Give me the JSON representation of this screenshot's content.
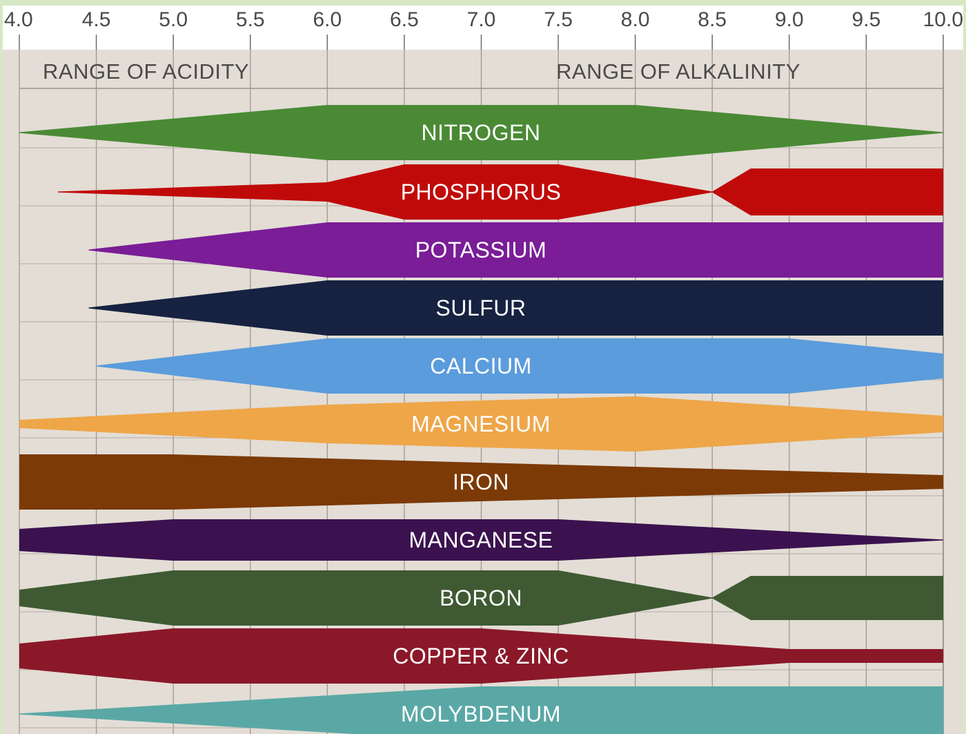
{
  "chart_data": {
    "type": "area",
    "x_ticks": [
      "4.0",
      "4.5",
      "5.0",
      "5.5",
      "6.0",
      "6.5",
      "7.0",
      "7.5",
      "8.0",
      "8.5",
      "9.0",
      "9.5",
      "10.0"
    ],
    "xlim": [
      4.0,
      10.0
    ],
    "grid": true,
    "range_labels": {
      "acidity": "RANGE OF ACIDITY",
      "alkalinity": "RANGE OF ALKALINITY"
    },
    "series": [
      {
        "name": "NITROGEN",
        "color": "#4a8a35",
        "x": [
          4.0,
          6.0,
          8.0,
          10.0
        ],
        "availability": [
          0.0,
          1.0,
          1.0,
          0.0
        ]
      },
      {
        "name": "PHOSPHORUS",
        "color": "#c00a0a",
        "x": [
          4.25,
          6.0,
          6.5,
          7.5,
          8.5,
          8.75,
          10.0
        ],
        "availability": [
          0.0,
          0.35,
          1.0,
          1.0,
          0.0,
          0.85,
          0.85
        ]
      },
      {
        "name": "POTASSIUM",
        "color": "#7a1d97",
        "x": [
          4.45,
          6.0,
          10.0
        ],
        "availability": [
          0.0,
          1.0,
          1.0
        ]
      },
      {
        "name": "SULFUR",
        "color": "#162240",
        "x": [
          4.45,
          6.0,
          10.0
        ],
        "availability": [
          0.0,
          1.0,
          1.0
        ]
      },
      {
        "name": "CALCIUM",
        "color": "#5a9cdc",
        "x": [
          4.5,
          6.0,
          9.0,
          10.0
        ],
        "availability": [
          0.0,
          1.0,
          1.0,
          0.45
        ]
      },
      {
        "name": "MAGNESIUM",
        "color": "#eea649",
        "x": [
          4.0,
          6.0,
          8.0,
          10.0
        ],
        "availability": [
          0.15,
          0.7,
          1.0,
          0.3
        ]
      },
      {
        "name": "IRON",
        "color": "#7c3a07",
        "x": [
          4.0,
          5.0,
          10.0
        ],
        "availability": [
          1.0,
          1.0,
          0.25
        ]
      },
      {
        "name": "MANGANESE",
        "color": "#3b124f",
        "x": [
          4.0,
          5.0,
          7.5,
          10.0
        ],
        "availability": [
          0.4,
          0.75,
          0.75,
          0.0
        ]
      },
      {
        "name": "BORON",
        "color": "#3f5a33",
        "x": [
          4.0,
          5.0,
          7.5,
          8.5,
          8.75,
          10.0
        ],
        "availability": [
          0.3,
          1.0,
          1.0,
          0.0,
          0.8,
          0.8
        ]
      },
      {
        "name": "COPPER & ZINC",
        "color": "#8b1829",
        "x": [
          4.0,
          5.0,
          7.0,
          9.0,
          10.0
        ],
        "availability": [
          0.45,
          1.0,
          1.0,
          0.25,
          0.25
        ]
      },
      {
        "name": "MOLYBDENUM",
        "color": "#5aa8a6",
        "x": [
          4.0,
          7.0,
          10.0
        ],
        "availability": [
          0.0,
          1.0,
          1.0
        ]
      }
    ]
  }
}
